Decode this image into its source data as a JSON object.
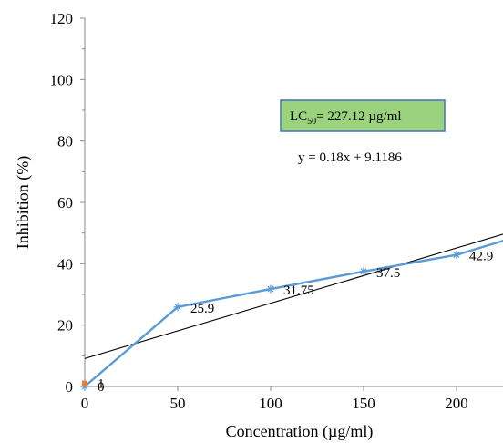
{
  "chart_data": {
    "type": "line",
    "xlabel": "Concentration (µg/ml)",
    "ylabel": "Inhibition (%)",
    "xlim": [
      0,
      225
    ],
    "ylim": [
      0,
      120
    ],
    "x_ticks": [
      0,
      50,
      100,
      150,
      200
    ],
    "y_ticks": [
      0,
      20,
      40,
      60,
      80,
      100,
      120
    ],
    "x_tick_labels": [
      "0",
      "50",
      "100",
      "150",
      "200"
    ],
    "y_tick_labels": [
      "0",
      "20",
      "40",
      "60",
      "80",
      "100",
      "120"
    ],
    "grid": false,
    "legend": "none",
    "series": [
      {
        "kind": "line-markers",
        "color": "#5b9bd5",
        "marker": "asterisk",
        "points": [
          {
            "x": 0,
            "y": 0,
            "label": "0"
          },
          {
            "x": 50,
            "y": 25.9,
            "label": "25.9"
          },
          {
            "x": 100,
            "y": 31.75,
            "label": "31.75"
          },
          {
            "x": 150,
            "y": 37.5,
            "label": "37.5"
          },
          {
            "x": 200,
            "y": 42.9,
            "label": "42.9"
          },
          {
            "x": 250,
            "y": 52,
            "label": ""
          }
        ]
      },
      {
        "kind": "point",
        "color": "#ed7d31",
        "marker": "square",
        "points": [
          {
            "x": 0,
            "y": 1,
            "label": "1"
          }
        ]
      }
    ],
    "trendline": {
      "slope": 0.18,
      "intercept": 9.1186,
      "color": "#000000",
      "equation": "y = 0.18x + 9.1186"
    },
    "annotation": {
      "prefix": "LC",
      "subscript": "50",
      "suffix": "= 227.12 µg/ml",
      "fill": "#9bd27e",
      "stroke": "#4472c4"
    }
  }
}
